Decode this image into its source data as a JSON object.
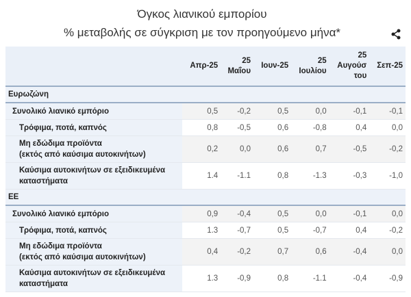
{
  "title": "Όγκος λιανικού εμπορίου",
  "subtitle": "% μεταβολής σε σύγκριση με τον προηγούμενο μήνα*",
  "share_icon": "share-icon",
  "columns": [
    "Απρ-25",
    "25\nΜαΐου",
    "Ιουν-25",
    "25\nΙουλίου",
    "25\nΑυγούσ\nτου",
    "Σεπ-25"
  ],
  "groups": [
    {
      "name": "Ευρωζώνη",
      "rows": [
        {
          "label": "Συνολικό λιανικό εμπόριο",
          "values": [
            "0,5",
            "-0,2",
            "0,5",
            "0,0",
            "-0,1",
            "-0,1"
          ]
        },
        {
          "label": "Τρόφιμα, ποτά, καπνός",
          "values": [
            "0,8",
            "-0,5",
            "0,6",
            "-0,8",
            "0,4",
            "0,0"
          ]
        },
        {
          "label": "Μη εδώδιμα προϊόντα\n(εκτός από καύσιμα αυτοκινήτων)",
          "values": [
            "0,2",
            "0,0",
            "0,6",
            "0,7",
            "-0,5",
            "-0,2"
          ]
        },
        {
          "label": "Καύσιμα αυτοκινήτων σε εξειδικευμένα\nκαταστήματα",
          "values": [
            "1.4",
            "-1.1",
            "0,8",
            "-1.3",
            "-0,3",
            "-1,0"
          ]
        }
      ]
    },
    {
      "name": "ΕΕ",
      "rows": [
        {
          "label": "Συνολικό λιανικό εμπόριο",
          "values": [
            "0,9",
            "-0,4",
            "0,5",
            "0,0",
            "-0,1",
            "0,0"
          ]
        },
        {
          "label": "Τρόφιμα, ποτά, καπνός",
          "values": [
            "1.3",
            "-0,7",
            "0,5",
            "-0,7",
            "0,4",
            "-0,2"
          ]
        },
        {
          "label": "Μη εδώδιμα προϊόντα\n(εκτός από καύσιμα αυτοκινήτων)",
          "values": [
            "0,4",
            "-0,2",
            "0,7",
            "0,6",
            "-0,4",
            "0,0"
          ]
        },
        {
          "label": "Καύσιμα αυτοκινήτων σε εξειδικευμένα\nκαταστήματα",
          "values": [
            "1.3",
            "-0,9",
            "0,8",
            "-1.1",
            "-0,4",
            "-0,9"
          ]
        }
      ]
    }
  ]
}
